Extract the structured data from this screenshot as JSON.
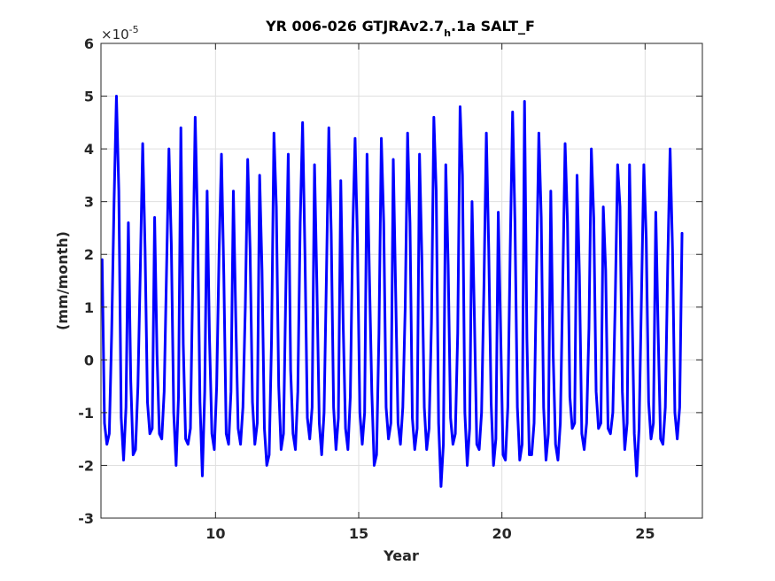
{
  "chart_data": {
    "type": "line",
    "title": {
      "prefix": "YR 006-026 GTJRAv2.7",
      "subscript": "h",
      "suffix": ".1a SALT_F"
    },
    "xlabel": "Year",
    "ylabel": "(mm/month)",
    "xlim": [
      6,
      27
    ],
    "ylim": [
      -3,
      6
    ],
    "y_exponent": {
      "base": "×10",
      "power": "-5"
    },
    "x_ticks": [
      10,
      15,
      20,
      25
    ],
    "x_tick_labels": [
      "10",
      "15",
      "20",
      "25"
    ],
    "y_ticks": [
      -3,
      -2,
      -1,
      0,
      1,
      2,
      3,
      4,
      5,
      6
    ],
    "y_tick_labels": [
      "-3",
      "-2",
      "-1",
      "0",
      "1",
      "2",
      "3",
      "4",
      "5",
      "6"
    ],
    "grid": true,
    "line_color": "#0000ff",
    "series": [
      {
        "x_start": 6.04,
        "x_step": 0.08333333,
        "values": [
          1.9,
          -1.2,
          -1.6,
          -1.4,
          0.5,
          3.0,
          5.0,
          3.2,
          -1.1,
          -1.9,
          -0.9,
          2.6,
          -0.4,
          -1.8,
          -1.7,
          -0.5,
          1.7,
          4.1,
          2.1,
          -0.8,
          -1.4,
          -1.3,
          2.7,
          0.1,
          -1.4,
          -1.5,
          -0.6,
          1.7,
          4.0,
          2.2,
          -1.0,
          -2.0,
          -0.7,
          4.4,
          0.3,
          -1.5,
          -1.6,
          -1.3,
          1.6,
          4.6,
          2.6,
          -0.8,
          -2.2,
          -0.6,
          3.2,
          0.4,
          -1.4,
          -1.7,
          -0.5,
          2.0,
          3.9,
          1.6,
          -1.4,
          -1.6,
          -0.6,
          3.2,
          0.8,
          -1.3,
          -1.6,
          -0.9,
          1.0,
          3.8,
          2.1,
          -0.8,
          -1.6,
          -1.2,
          3.5,
          1.7,
          -1.3,
          -2.0,
          -1.8,
          0.4,
          4.3,
          2.9,
          -0.5,
          -1.7,
          -1.4,
          1.4,
          3.9,
          -0.2,
          -1.4,
          -1.7,
          -0.6,
          2.6,
          4.5,
          2.0,
          -1.1,
          -1.5,
          -0.9,
          3.7,
          1.4,
          -1.2,
          -1.8,
          -1.0,
          1.6,
          4.4,
          2.4,
          -0.9,
          -1.7,
          -1.1,
          3.4,
          0.7,
          -1.3,
          -1.7,
          -0.7,
          2.4,
          4.2,
          2.2,
          -1.0,
          -1.6,
          -1.0,
          3.9,
          1.6,
          -0.6,
          -2.0,
          -1.8,
          0.5,
          4.2,
          2.6,
          -0.9,
          -1.5,
          -1.2,
          3.8,
          1.3,
          -1.2,
          -1.6,
          -0.9,
          1.0,
          4.3,
          2.6,
          -1.1,
          -1.7,
          -1.3,
          3.9,
          1.9,
          -0.9,
          -1.7,
          -1.3,
          0.7,
          4.6,
          3.2,
          -1.2,
          -2.4,
          -1.6,
          3.7,
          1.8,
          -1.1,
          -1.6,
          -1.4,
          0.5,
          4.8,
          3.5,
          -1.0,
          -2.0,
          -1.3,
          3.0,
          0.8,
          -1.6,
          -1.7,
          -1.0,
          1.4,
          4.3,
          2.1,
          -0.8,
          -2.0,
          -1.5,
          2.8,
          0.5,
          -1.8,
          -1.9,
          -0.9,
          2.1,
          4.7,
          2.6,
          -0.9,
          -1.9,
          -1.6,
          4.9,
          0.4,
          -1.8,
          -1.8,
          -1.2,
          1.6,
          4.3,
          2.7,
          -0.9,
          -1.9,
          -1.4,
          3.2,
          0.1,
          -1.6,
          -1.9,
          -1.2,
          1.4,
          4.1,
          2.6,
          -0.7,
          -1.3,
          -1.2,
          3.5,
          1.6,
          -1.4,
          -1.7,
          -1.2,
          0.6,
          4.0,
          2.7,
          -0.6,
          -1.3,
          -1.2,
          2.9,
          1.7,
          -1.3,
          -1.4,
          -1.0,
          1.1,
          3.7,
          2.9,
          -0.6,
          -1.7,
          -1.2,
          3.7,
          1.1,
          -1.4,
          -2.2,
          -1.3,
          1.2,
          3.7,
          2.3,
          -0.8,
          -1.5,
          -1.2,
          2.8,
          0.5,
          -1.5,
          -1.6,
          -0.9,
          1.8,
          4.0,
          2.1,
          -1.0,
          -1.5,
          -0.9,
          2.4
        ]
      }
    ]
  }
}
